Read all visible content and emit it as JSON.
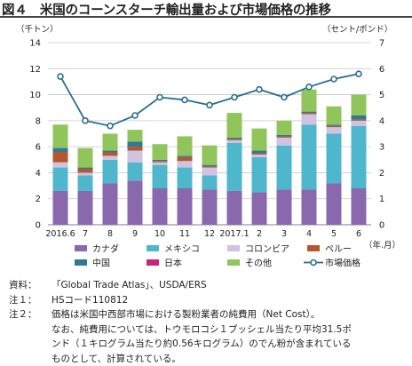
{
  "title": "図４　米国のコーンスターチ輸出量および市場価格の推移",
  "notes": [
    {
      "key": "資料：",
      "text": "「Global Trade Atlas」、USDA/ERS"
    },
    {
      "key": "注１：",
      "text": "HSコード110812"
    },
    {
      "key": "注２：",
      "text": "価格は米国中西部市場における製粉業者の純費用（Net Cost）。"
    }
  ],
  "note_continuation": [
    "なお、純費用については、トウモロコシ１ブッシェル当たり平均31.5ポ",
    "ンド（１キログラム当たり約0.56キログラム）のでん粉が含まれている",
    "ものとして、計算されている。"
  ],
  "chart_data": {
    "type": "bar",
    "stacked": true,
    "left_axis_unit": "（千トン）",
    "right_axis_unit": "（セント/ポンド）",
    "x_unit": "（年.月）",
    "ylim": [
      0,
      14
    ],
    "yticks": [
      0,
      2,
      4,
      6,
      8,
      10,
      12,
      14
    ],
    "y2lim": [
      0,
      7
    ],
    "y2ticks": [
      0,
      1,
      2,
      3,
      4,
      5,
      6,
      7
    ],
    "categories": [
      "2016.6",
      "7",
      "8",
      "9",
      "10",
      "11",
      "12",
      "2017.1",
      "2",
      "3",
      "4",
      "5",
      "6"
    ],
    "series": [
      {
        "name": "カナダ",
        "color": "#8a68ad",
        "values": [
          2.6,
          2.6,
          3.2,
          3.4,
          2.8,
          2.8,
          2.7,
          2.6,
          2.5,
          2.7,
          2.7,
          3.2,
          2.8
        ]
      },
      {
        "name": "メキシコ",
        "color": "#4fb7cc",
        "values": [
          1.8,
          1.2,
          1.8,
          1.4,
          1.8,
          1.6,
          1.1,
          3.7,
          2.7,
          3.4,
          5.0,
          3.8,
          4.8
        ]
      },
      {
        "name": "コロンビア",
        "color": "#cfc2e2",
        "values": [
          0.4,
          0.2,
          0.3,
          0.9,
          0.2,
          0.5,
          0.6,
          0.2,
          0.2,
          0.6,
          0.8,
          0.5,
          0.4
        ]
      },
      {
        "name": "ペルー",
        "color": "#b5562e",
        "values": [
          0.8,
          0.3,
          0.3,
          0.3,
          0.1,
          0.3,
          0.1,
          0.1,
          0.1,
          0.1,
          0.1,
          0.1,
          0.1
        ]
      },
      {
        "name": "中国",
        "color": "#2e7a93",
        "values": [
          0.3,
          0.1,
          0.1,
          0.4,
          0.1,
          0.1,
          0.1,
          0.1,
          0.2,
          0.1,
          0.1,
          0.1,
          0.3
        ]
      },
      {
        "name": "日本",
        "color": "#c9237a",
        "values": [
          0.0,
          0.0,
          0.0,
          0.0,
          0.0,
          0.0,
          0.0,
          0.0,
          0.0,
          0.0,
          0.0,
          0.0,
          0.0
        ]
      },
      {
        "name": "その他",
        "color": "#90c55b",
        "values": [
          1.8,
          1.5,
          1.3,
          0.9,
          1.2,
          1.5,
          1.5,
          1.9,
          1.7,
          1.1,
          1.7,
          1.4,
          1.6
        ]
      }
    ],
    "line_series": {
      "name": "市場価格",
      "color": "#2a6e8e",
      "axis": "right",
      "values": [
        5.7,
        4.0,
        3.8,
        4.2,
        4.9,
        4.8,
        4.6,
        4.9,
        5.2,
        4.9,
        5.3,
        5.6,
        5.8
      ]
    },
    "legend_position": "bottom",
    "grid": true
  }
}
